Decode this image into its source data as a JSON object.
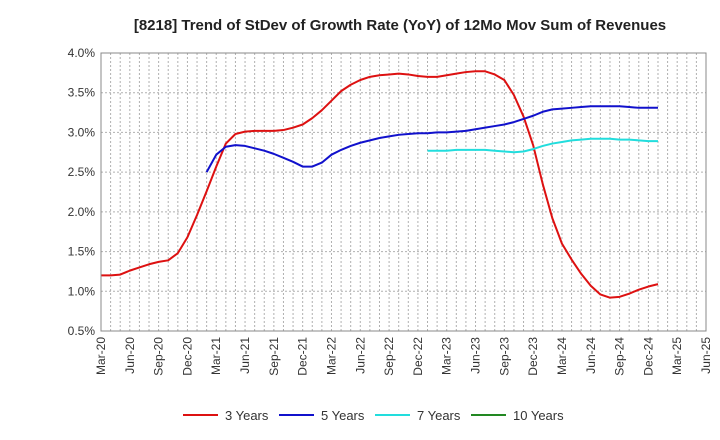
{
  "chart_data": {
    "type": "line",
    "title": "[8218]  Trend of StDev of Growth Rate (YoY) of 12Mo Mov Sum of Revenues",
    "xlabel": "",
    "ylabel": "",
    "ylim": [
      0.5,
      4.0
    ],
    "y_ticks": [
      0.5,
      1.0,
      1.5,
      2.0,
      2.5,
      3.0,
      3.5,
      4.0
    ],
    "y_tick_labels": [
      "0.5%",
      "1.0%",
      "1.5%",
      "2.0%",
      "2.5%",
      "3.0%",
      "3.5%",
      "4.0%"
    ],
    "x_ticks": [
      "Mar-20",
      "Jun-20",
      "Sep-20",
      "Dec-20",
      "Mar-21",
      "Jun-21",
      "Sep-21",
      "Dec-21",
      "Mar-22",
      "Jun-22",
      "Sep-22",
      "Dec-22",
      "Mar-23",
      "Jun-23",
      "Sep-23",
      "Dec-23",
      "Mar-24",
      "Jun-24",
      "Sep-24",
      "Dec-24",
      "Mar-25",
      "Jun-25"
    ],
    "grid": true,
    "series": [
      {
        "name": "3 Years",
        "color": "#dd1111",
        "values": [
          1.2,
          1.2,
          1.21,
          1.26,
          1.3,
          1.34,
          1.37,
          1.39,
          1.48,
          1.68,
          1.96,
          2.26,
          2.57,
          2.86,
          2.98,
          3.01,
          3.02,
          3.02,
          3.02,
          3.03,
          3.06,
          3.1,
          3.18,
          3.28,
          3.4,
          3.52,
          3.6,
          3.66,
          3.7,
          3.72,
          3.73,
          3.74,
          3.73,
          3.71,
          3.7,
          3.7,
          3.72,
          3.74,
          3.76,
          3.77,
          3.77,
          3.73,
          3.66,
          3.47,
          3.2,
          2.84,
          2.35,
          1.92,
          1.6,
          1.4,
          1.22,
          1.07,
          0.96,
          0.92,
          0.93,
          0.97,
          1.02,
          1.06,
          1.09
        ]
      },
      {
        "name": "5 Years",
        "color": "#1111cc",
        "values": [
          null,
          null,
          null,
          null,
          null,
          null,
          null,
          null,
          null,
          null,
          null,
          2.5,
          2.72,
          2.82,
          2.84,
          2.83,
          2.8,
          2.77,
          2.73,
          2.68,
          2.63,
          2.57,
          2.57,
          2.62,
          2.72,
          2.78,
          2.83,
          2.87,
          2.9,
          2.93,
          2.95,
          2.97,
          2.98,
          2.99,
          2.99,
          3.0,
          3.0,
          3.01,
          3.02,
          3.04,
          3.06,
          3.08,
          3.1,
          3.13,
          3.17,
          3.21,
          3.26,
          3.29,
          3.3,
          3.31,
          3.32,
          3.33,
          3.33,
          3.33,
          3.33,
          3.32,
          3.31,
          3.31,
          3.31
        ]
      },
      {
        "name": "7 Years",
        "color": "#22dddd",
        "values": [
          null,
          null,
          null,
          null,
          null,
          null,
          null,
          null,
          null,
          null,
          null,
          null,
          null,
          null,
          null,
          null,
          null,
          null,
          null,
          null,
          null,
          null,
          null,
          null,
          null,
          null,
          null,
          null,
          null,
          null,
          null,
          null,
          null,
          null,
          2.77,
          2.77,
          2.77,
          2.78,
          2.78,
          2.78,
          2.78,
          2.77,
          2.76,
          2.75,
          2.76,
          2.79,
          2.83,
          2.86,
          2.88,
          2.9,
          2.91,
          2.92,
          2.92,
          2.92,
          2.91,
          2.91,
          2.9,
          2.89,
          2.89
        ]
      },
      {
        "name": "10 Years",
        "color": "#228822",
        "values": []
      }
    ]
  }
}
